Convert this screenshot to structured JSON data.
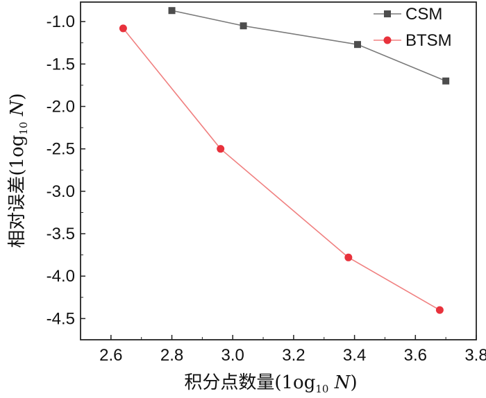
{
  "chart_data": {
    "type": "line",
    "xlabel": {
      "text": "积分点数量",
      "unit_prefix": "(1og",
      "unit_sub": "10",
      "unit_var": "N",
      "unit_suffix": ")"
    },
    "ylabel": {
      "text": "相对误差",
      "unit_prefix": "(1og",
      "unit_sub": "10",
      "unit_var": "N",
      "unit_suffix": ")"
    },
    "xlim": [
      2.5,
      3.8
    ],
    "ylim": [
      -4.75,
      -0.77
    ],
    "x_ticks": [
      "2.6",
      "2.8",
      "3.0",
      "3.2",
      "3.4",
      "3.6",
      "3.8"
    ],
    "y_ticks": [
      "-1.0",
      "-1.5",
      "-2.0",
      "-2.5",
      "-3.0",
      "-3.5",
      "-4.0",
      "-4.5"
    ],
    "legend_position": "top-right",
    "series": [
      {
        "name": "CSM",
        "marker": "square",
        "color": "#4d4d4d",
        "line_color": "#7a7a7a",
        "x": [
          2.8,
          3.035,
          3.41,
          3.7
        ],
        "y": [
          -0.87,
          -1.05,
          -1.27,
          -1.7
        ]
      },
      {
        "name": "BTSM",
        "marker": "circle",
        "color": "#e8323c",
        "line_color": "#f08080",
        "x": [
          2.64,
          2.96,
          3.38,
          3.68
        ],
        "y": [
          -1.08,
          -2.5,
          -3.78,
          -4.4
        ]
      }
    ]
  }
}
